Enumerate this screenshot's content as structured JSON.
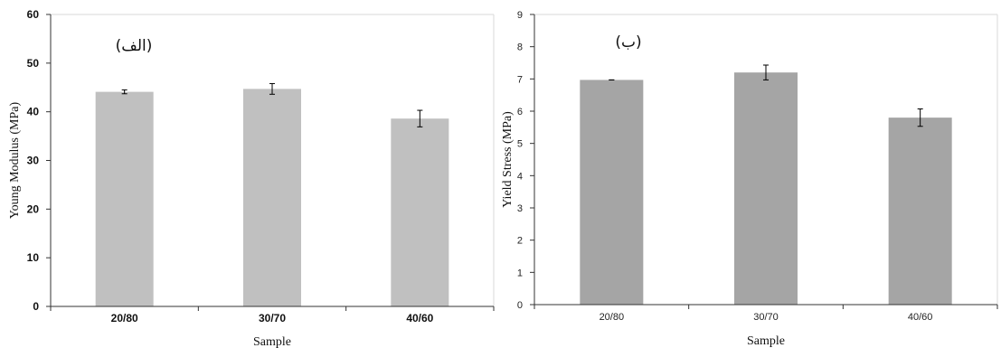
{
  "chart_data": [
    {
      "type": "bar",
      "panel_label": "(الف)",
      "categories": [
        "20/80",
        "30/70",
        "40/60"
      ],
      "values": [
        44.1,
        44.7,
        38.6
      ],
      "errors": [
        0.4,
        1.1,
        1.7
      ],
      "xlabel": "Sample",
      "ylabel": "Young Modulus (MPa)",
      "ylim": [
        0,
        60
      ],
      "yticks": [
        0,
        10,
        20,
        30,
        40,
        50,
        60
      ],
      "bar_color": "#c0c0c0",
      "tick_style": "bold",
      "grid": false
    },
    {
      "type": "bar",
      "panel_label": "(ب)",
      "categories": [
        "20/80",
        "30/70",
        "40/60"
      ],
      "values": [
        6.97,
        7.2,
        5.8
      ],
      "errors": [
        0.0,
        0.23,
        0.27
      ],
      "xlabel": "Sample",
      "ylabel": "Yield Stress (MPa)",
      "ylim": [
        0,
        9
      ],
      "yticks": [
        0,
        1,
        2,
        3,
        4,
        5,
        6,
        7,
        8,
        9
      ],
      "bar_color": "#a5a5a5",
      "tick_style": "regular",
      "grid": false
    }
  ]
}
